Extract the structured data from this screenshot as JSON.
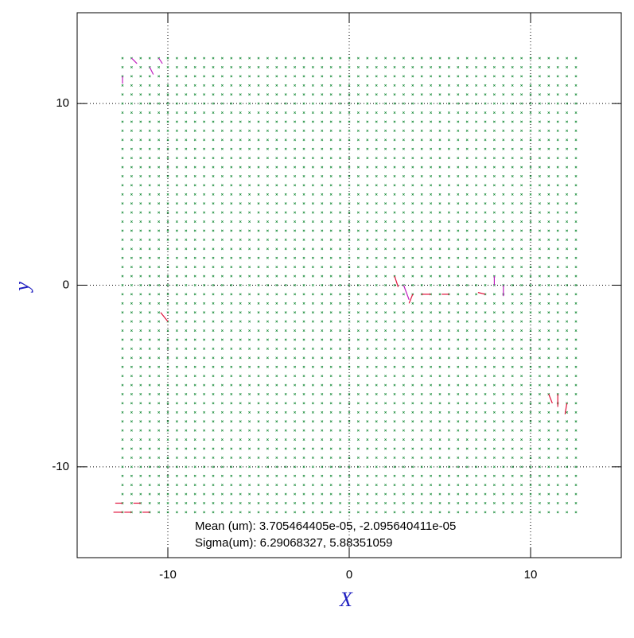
{
  "chart_data": {
    "type": "quiver",
    "xlabel": "X",
    "ylabel": "y",
    "xlim": [
      -15,
      15
    ],
    "ylim": [
      -15,
      15
    ],
    "xticks": [
      -10,
      0,
      10
    ],
    "yticks": [
      -10,
      0,
      10
    ],
    "grid": true,
    "grid_x": [
      -12.5,
      -12,
      -11.5,
      -11,
      -10.5,
      -10,
      -9.5,
      -9,
      -8.5,
      -8,
      -7.5,
      -7,
      -6.5,
      -6,
      -5.5,
      -5,
      -4.5,
      -4,
      -3.5,
      -3,
      -2.5,
      -2,
      -1.5,
      -1,
      -0.5,
      0,
      0.5,
      1,
      1.5,
      2,
      2.5,
      3,
      3.5,
      4,
      4.5,
      5,
      5.5,
      6,
      6.5,
      7,
      7.5,
      8,
      8.5,
      9,
      9.5,
      10,
      10.5,
      11,
      11.5,
      12,
      12.5
    ],
    "grid_y": [
      -12.5,
      -12,
      -11.5,
      -11,
      -10.5,
      -10,
      -9.5,
      -9,
      -8.5,
      -8,
      -7.5,
      -7,
      -6.5,
      -6,
      -5.5,
      -5,
      -4.5,
      -4,
      -3.5,
      -3,
      -2.5,
      -2,
      -1.5,
      -1,
      -0.5,
      0,
      0.5,
      1,
      1.5,
      2,
      2.5,
      3,
      3.5,
      4,
      4.5,
      5,
      5.5,
      6,
      6.5,
      7,
      7.5,
      8,
      8.5,
      9,
      9.5,
      10,
      10.5,
      11,
      11.5,
      12,
      12.5
    ],
    "point_color": "#1f8f3f",
    "series": [
      {
        "color": "#e0103a",
        "x": [
          -10,
          2.5,
          3.5,
          4.5,
          5.5,
          7.5,
          11,
          11.5,
          12,
          -12.5,
          -12,
          -11.5,
          -11,
          -12.5
        ],
        "y": [
          -2,
          0.5,
          -0.5,
          -0.5,
          -0.5,
          -0.5,
          -6,
          -6,
          -6.5,
          -12.5,
          -12.5,
          -12,
          -12.5,
          -12
        ],
        "u": [
          -0.4,
          0.2,
          -0.2,
          -0.5,
          -0.4,
          -0.4,
          0.2,
          0,
          -0.1,
          -0.5,
          -0.4,
          -0.4,
          -0.4,
          -0.4
        ],
        "v": [
          0.5,
          -0.6,
          -0.5,
          0,
          0,
          0.1,
          -0.5,
          -0.7,
          -0.6,
          0,
          0,
          0,
          0,
          0
        ]
      },
      {
        "color": "#c020c0",
        "x": [
          3,
          8,
          8.5,
          -12,
          -11,
          -12.5,
          -10.5
        ],
        "y": [
          0,
          0.5,
          0,
          12.5,
          12,
          11.5,
          12.5
        ],
        "u": [
          0.3,
          0,
          0,
          0.3,
          0.2,
          0,
          0.2
        ],
        "v": [
          -0.8,
          -0.5,
          -0.6,
          -0.3,
          -0.4,
          -0.4,
          -0.3
        ]
      }
    ],
    "annotations": [
      "Mean (um): 3.705464405e-05, -2.095640411e-05",
      "Sigma(um): 6.29068327, 5.88351059"
    ]
  }
}
